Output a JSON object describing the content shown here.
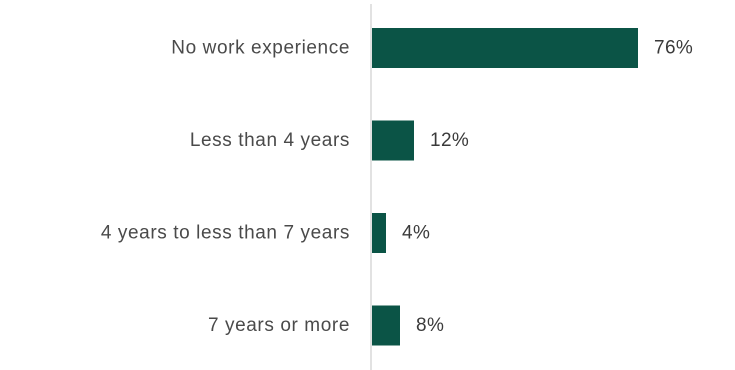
{
  "chart_data": {
    "type": "bar",
    "orientation": "horizontal",
    "categories": [
      "No work experience",
      "Less than 4 years",
      "4 years to less than 7 years",
      "7 years or more"
    ],
    "values": [
      76,
      12,
      4,
      8
    ],
    "value_labels": [
      "76%",
      "12%",
      "4%",
      "8%"
    ],
    "unit": "%",
    "title": "",
    "xlabel": "",
    "ylabel": "",
    "xlim": [
      0,
      76
    ],
    "grid": false,
    "legend": "none",
    "colors": {
      "bar": "#0b5446",
      "axis": "#cfcfcf",
      "label": "#4a4a4a",
      "value": "#3a3a3a"
    }
  }
}
